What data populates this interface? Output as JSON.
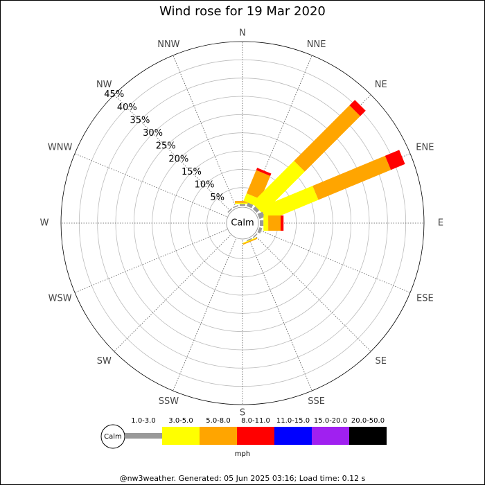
{
  "chart_data": {
    "type": "wind_rose",
    "title": "Wind rose for 19 Mar 2020",
    "directions": [
      "N",
      "NNE",
      "NE",
      "ENE",
      "E",
      "ESE",
      "SE",
      "SSE",
      "S",
      "SSW",
      "SW",
      "WSW",
      "W",
      "WNW",
      "NW",
      "NNW"
    ],
    "series": [
      {
        "name": "1.0-3.0",
        "color": "#999999",
        "values": [
          0.5,
          1,
          1,
          1.5,
          1,
          0.8,
          0.3,
          0.3,
          0,
          0,
          0,
          0,
          0,
          0,
          0.3,
          0.3
        ]
      },
      {
        "name": "3.0-5.0",
        "color": "#ffff00",
        "values": [
          0.3,
          2.2,
          16.3,
          15.4,
          1.3,
          0,
          0,
          0.2,
          0,
          0,
          0,
          0,
          0,
          0,
          0,
          0
        ]
      },
      {
        "name": "5.0-8.0",
        "color": "#ffa500",
        "values": [
          0.5,
          6.9,
          21.5,
          21.5,
          3.4,
          0,
          0,
          0.3,
          0,
          0,
          0,
          0,
          0,
          0,
          0,
          0
        ]
      },
      {
        "name": "8.0-11.0",
        "color": "#ff0000",
        "values": [
          0,
          0.7,
          2.1,
          4.2,
          0.8,
          0,
          0,
          0,
          0,
          0,
          0,
          0,
          0,
          0,
          0,
          0
        ]
      },
      {
        "name": "11.0-15.0",
        "color": "#0000ff",
        "values": [
          0,
          0,
          0,
          0,
          0,
          0,
          0,
          0,
          0,
          0,
          0,
          0,
          0,
          0,
          0,
          0
        ]
      },
      {
        "name": "15.0-20.0",
        "color": "#a020f0",
        "values": [
          0,
          0,
          0,
          0,
          0,
          0,
          0,
          0,
          0,
          0,
          0,
          0,
          0,
          0,
          0,
          0
        ]
      },
      {
        "name": "20.0-50.0",
        "color": "#000000",
        "values": [
          0,
          0,
          0,
          0,
          0,
          0,
          0,
          0,
          0,
          0,
          0,
          0,
          0,
          0,
          0,
          0
        ]
      }
    ],
    "rlim": [
      0,
      45
    ],
    "rticks": [
      {
        "value": 5,
        "label": "5%"
      },
      {
        "value": 10,
        "label": "10%"
      },
      {
        "value": 15,
        "label": "15%"
      },
      {
        "value": 20,
        "label": "20%"
      },
      {
        "value": 25,
        "label": "25%"
      },
      {
        "value": 30,
        "label": "30%"
      },
      {
        "value": 35,
        "label": "35%"
      },
      {
        "value": 40,
        "label": "40%"
      },
      {
        "value": 45,
        "label": "45%"
      }
    ],
    "calm_label": "Calm",
    "unit": "mph",
    "footer": "@nw3weather. Generated: 05 Jun 2025 03:16; Load time: 0.12 s"
  }
}
